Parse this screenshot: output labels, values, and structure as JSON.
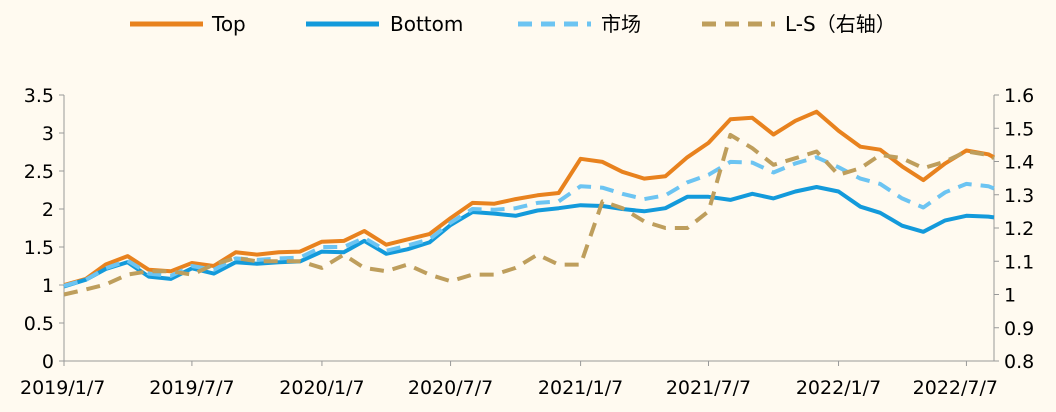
{
  "chart_data": {
    "type": "line",
    "x_ticks": [
      "2019/1/7",
      "2019/7/7",
      "2020/1/7",
      "2020/7/7",
      "2021/1/7",
      "2021/7/7",
      "2022/1/7",
      "2022/7/7"
    ],
    "y_left_ticks": [
      "0",
      "0.5",
      "1",
      "1.5",
      "2",
      "2.5",
      "3",
      "3.5"
    ],
    "y_right_ticks": [
      "0.8",
      "0.9",
      "1",
      "1.1",
      "1.2",
      "1.3",
      "1.4",
      "1.5",
      "1.6"
    ],
    "ylim_left": [
      0,
      3.5
    ],
    "ylim_right": [
      0.8,
      1.6
    ],
    "x_date_range": [
      "2019-01-07",
      "2022-08-15"
    ],
    "legend_position": "top",
    "grid": false,
    "series": [
      {
        "name": "Top",
        "axis": "left",
        "color": "#E8821E",
        "dash": "solid",
        "points": [
          [
            "2019-01-07",
            1.0
          ],
          [
            "2019-02-07",
            1.08
          ],
          [
            "2019-03-07",
            1.27
          ],
          [
            "2019-04-07",
            1.38
          ],
          [
            "2019-05-07",
            1.2
          ],
          [
            "2019-06-07",
            1.18
          ],
          [
            "2019-07-07",
            1.29
          ],
          [
            "2019-08-07",
            1.25
          ],
          [
            "2019-09-07",
            1.43
          ],
          [
            "2019-10-07",
            1.4
          ],
          [
            "2019-11-07",
            1.43
          ],
          [
            "2019-12-07",
            1.44
          ],
          [
            "2020-01-07",
            1.57
          ],
          [
            "2020-02-07",
            1.58
          ],
          [
            "2020-03-07",
            1.71
          ],
          [
            "2020-04-07",
            1.53
          ],
          [
            "2020-05-07",
            1.6
          ],
          [
            "2020-06-07",
            1.67
          ],
          [
            "2020-07-07",
            1.88
          ],
          [
            "2020-08-07",
            2.08
          ],
          [
            "2020-09-07",
            2.07
          ],
          [
            "2020-10-07",
            2.13
          ],
          [
            "2020-11-07",
            2.18
          ],
          [
            "2020-12-07",
            2.21
          ],
          [
            "2021-01-07",
            2.66
          ],
          [
            "2021-02-07",
            2.62
          ],
          [
            "2021-03-07",
            2.49
          ],
          [
            "2021-04-07",
            2.4
          ],
          [
            "2021-05-07",
            2.43
          ],
          [
            "2021-06-07",
            2.68
          ],
          [
            "2021-07-07",
            2.87
          ],
          [
            "2021-08-07",
            3.18
          ],
          [
            "2021-09-07",
            3.2
          ],
          [
            "2021-10-07",
            2.98
          ],
          [
            "2021-11-07",
            3.16
          ],
          [
            "2021-12-07",
            3.28
          ],
          [
            "2022-01-07",
            3.03
          ],
          [
            "2022-02-07",
            2.82
          ],
          [
            "2022-03-07",
            2.78
          ],
          [
            "2022-04-07",
            2.56
          ],
          [
            "2022-05-07",
            2.38
          ],
          [
            "2022-06-07",
            2.6
          ],
          [
            "2022-07-07",
            2.77
          ],
          [
            "2022-08-07",
            2.72
          ],
          [
            "2022-08-15",
            2.68
          ]
        ]
      },
      {
        "name": "Bottom",
        "axis": "left",
        "color": "#139ADB",
        "dash": "solid",
        "points": [
          [
            "2019-01-07",
            0.98
          ],
          [
            "2019-02-07",
            1.07
          ],
          [
            "2019-03-07",
            1.21
          ],
          [
            "2019-04-07",
            1.3
          ],
          [
            "2019-05-07",
            1.11
          ],
          [
            "2019-06-07",
            1.08
          ],
          [
            "2019-07-07",
            1.22
          ],
          [
            "2019-08-07",
            1.15
          ],
          [
            "2019-09-07",
            1.3
          ],
          [
            "2019-10-07",
            1.28
          ],
          [
            "2019-11-07",
            1.3
          ],
          [
            "2019-12-07",
            1.31
          ],
          [
            "2020-01-07",
            1.44
          ],
          [
            "2020-02-07",
            1.43
          ],
          [
            "2020-03-07",
            1.58
          ],
          [
            "2020-04-07",
            1.41
          ],
          [
            "2020-05-07",
            1.47
          ],
          [
            "2020-06-07",
            1.56
          ],
          [
            "2020-07-07",
            1.79
          ],
          [
            "2020-08-07",
            1.96
          ],
          [
            "2020-09-07",
            1.94
          ],
          [
            "2020-10-07",
            1.91
          ],
          [
            "2020-11-07",
            1.98
          ],
          [
            "2020-12-07",
            2.01
          ],
          [
            "2021-01-07",
            2.05
          ],
          [
            "2021-02-07",
            2.04
          ],
          [
            "2021-03-07",
            2.0
          ],
          [
            "2021-04-07",
            1.97
          ],
          [
            "2021-05-07",
            2.01
          ],
          [
            "2021-06-07",
            2.16
          ],
          [
            "2021-07-07",
            2.16
          ],
          [
            "2021-08-07",
            2.12
          ],
          [
            "2021-09-07",
            2.2
          ],
          [
            "2021-10-07",
            2.14
          ],
          [
            "2021-11-07",
            2.23
          ],
          [
            "2021-12-07",
            2.29
          ],
          [
            "2022-01-07",
            2.23
          ],
          [
            "2022-02-07",
            2.03
          ],
          [
            "2022-03-07",
            1.95
          ],
          [
            "2022-04-07",
            1.78
          ],
          [
            "2022-05-07",
            1.7
          ],
          [
            "2022-06-07",
            1.85
          ],
          [
            "2022-07-07",
            1.91
          ],
          [
            "2022-08-07",
            1.9
          ],
          [
            "2022-08-15",
            1.89
          ]
        ]
      },
      {
        "name": "市场",
        "axis": "left",
        "color": "#6CC4F2",
        "dash": "dashed",
        "points": [
          [
            "2019-01-07",
            0.99
          ],
          [
            "2019-02-07",
            1.07
          ],
          [
            "2019-03-07",
            1.22
          ],
          [
            "2019-04-07",
            1.32
          ],
          [
            "2019-05-07",
            1.15
          ],
          [
            "2019-06-07",
            1.12
          ],
          [
            "2019-07-07",
            1.25
          ],
          [
            "2019-08-07",
            1.2
          ],
          [
            "2019-09-07",
            1.35
          ],
          [
            "2019-10-07",
            1.33
          ],
          [
            "2019-11-07",
            1.35
          ],
          [
            "2019-12-07",
            1.36
          ],
          [
            "2020-01-07",
            1.5
          ],
          [
            "2020-02-07",
            1.5
          ],
          [
            "2020-03-07",
            1.62
          ],
          [
            "2020-04-07",
            1.45
          ],
          [
            "2020-05-07",
            1.52
          ],
          [
            "2020-06-07",
            1.6
          ],
          [
            "2020-07-07",
            1.82
          ],
          [
            "2020-08-07",
            2.0
          ],
          [
            "2020-09-07",
            1.99
          ],
          [
            "2020-10-07",
            2.01
          ],
          [
            "2020-11-07",
            2.08
          ],
          [
            "2020-12-07",
            2.1
          ],
          [
            "2021-01-07",
            2.3
          ],
          [
            "2021-02-07",
            2.28
          ],
          [
            "2021-03-07",
            2.2
          ],
          [
            "2021-04-07",
            2.13
          ],
          [
            "2021-05-07",
            2.18
          ],
          [
            "2021-06-07",
            2.35
          ],
          [
            "2021-07-07",
            2.45
          ],
          [
            "2021-08-07",
            2.62
          ],
          [
            "2021-09-07",
            2.61
          ],
          [
            "2021-10-07",
            2.48
          ],
          [
            "2021-11-07",
            2.6
          ],
          [
            "2021-12-07",
            2.68
          ],
          [
            "2022-01-07",
            2.55
          ],
          [
            "2022-02-07",
            2.4
          ],
          [
            "2022-03-07",
            2.33
          ],
          [
            "2022-04-07",
            2.14
          ],
          [
            "2022-05-07",
            2.02
          ],
          [
            "2022-06-07",
            2.22
          ],
          [
            "2022-07-07",
            2.33
          ],
          [
            "2022-08-07",
            2.3
          ],
          [
            "2022-08-15",
            2.27
          ]
        ]
      },
      {
        "name": "L-S（右轴）",
        "axis": "right",
        "color": "#BE9E5C",
        "dash": "dashed",
        "points": [
          [
            "2019-01-07",
            1.0
          ],
          [
            "2019-02-07",
            1.015
          ],
          [
            "2019-03-07",
            1.03
          ],
          [
            "2019-04-07",
            1.06
          ],
          [
            "2019-05-07",
            1.07
          ],
          [
            "2019-06-07",
            1.07
          ],
          [
            "2019-07-07",
            1.06
          ],
          [
            "2019-08-07",
            1.09
          ],
          [
            "2019-09-07",
            1.11
          ],
          [
            "2019-10-07",
            1.1
          ],
          [
            "2019-11-07",
            1.1
          ],
          [
            "2019-12-07",
            1.1
          ],
          [
            "2020-01-07",
            1.08
          ],
          [
            "2020-02-07",
            1.12
          ],
          [
            "2020-03-07",
            1.08
          ],
          [
            "2020-04-07",
            1.07
          ],
          [
            "2020-05-07",
            1.09
          ],
          [
            "2020-06-07",
            1.06
          ],
          [
            "2020-07-07",
            1.04
          ],
          [
            "2020-08-07",
            1.06
          ],
          [
            "2020-09-07",
            1.06
          ],
          [
            "2020-10-07",
            1.08
          ],
          [
            "2020-11-07",
            1.12
          ],
          [
            "2020-12-07",
            1.09
          ],
          [
            "2021-01-07",
            1.09
          ],
          [
            "2021-02-07",
            1.28
          ],
          [
            "2021-03-07",
            1.26
          ],
          [
            "2021-04-07",
            1.22
          ],
          [
            "2021-05-07",
            1.2
          ],
          [
            "2021-06-07",
            1.2
          ],
          [
            "2021-07-07",
            1.25
          ],
          [
            "2021-08-07",
            1.48
          ],
          [
            "2021-09-07",
            1.44
          ],
          [
            "2021-10-07",
            1.39
          ],
          [
            "2021-11-07",
            1.41
          ],
          [
            "2021-12-07",
            1.43
          ],
          [
            "2022-01-07",
            1.36
          ],
          [
            "2022-02-07",
            1.38
          ],
          [
            "2022-03-07",
            1.42
          ],
          [
            "2022-04-07",
            1.41
          ],
          [
            "2022-05-07",
            1.38
          ],
          [
            "2022-06-07",
            1.4
          ],
          [
            "2022-07-07",
            1.43
          ],
          [
            "2022-08-07",
            1.42
          ],
          [
            "2022-08-15",
            1.41
          ]
        ]
      }
    ]
  },
  "colors": {
    "background": "#FFFAF0",
    "axis": "#999999"
  }
}
